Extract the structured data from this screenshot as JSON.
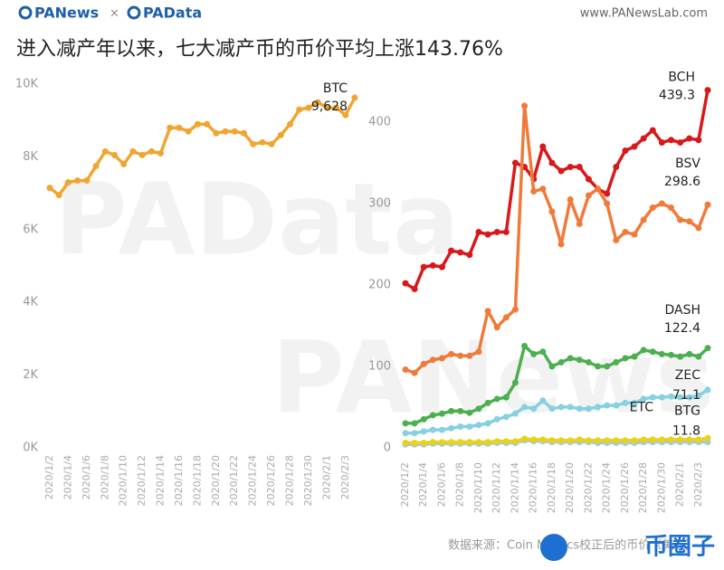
{
  "header": {
    "brand": "PANews",
    "separator": "×",
    "brand2": "PAData",
    "url": "www.PANewsLab.com"
  },
  "title": "进入减产年以来，七大减产币的币价平均上涨143.76%",
  "source": "数据来源：Coin Metrics校正后的币价（美元）",
  "watermarks": [
    "PAData",
    "PANews"
  ],
  "badge": "币圈子",
  "chart_data": [
    {
      "type": "line",
      "categories": [
        "2020/1/2",
        null,
        "2020/1/4",
        null,
        "2020/1/6",
        null,
        "2020/1/8",
        null,
        "2020/1/10",
        null,
        "2020/1/12",
        null,
        "2020/1/14",
        null,
        "2020/1/16",
        null,
        "2020/1/18",
        null,
        "2020/1/20",
        null,
        "2020/1/22",
        null,
        "2020/1/24",
        null,
        "2020/1/26",
        null,
        "2020/1/28",
        null,
        "2020/1/30",
        null,
        "2020/2/1",
        null,
        "2020/2/3",
        null
      ],
      "series": [
        {
          "name": "BTC",
          "color": "#f0a530",
          "values": [
            7150,
            6950,
            7300,
            7350,
            7350,
            7750,
            8150,
            8050,
            7800,
            8150,
            8050,
            8150,
            8100,
            8800,
            8800,
            8700,
            8900,
            8900,
            8650,
            8700,
            8700,
            8650,
            8350,
            8400,
            8350,
            8600,
            8900,
            9300,
            9350,
            9500,
            9350,
            9350,
            9150,
            9628
          ],
          "value_labels": [
            null,
            null,
            null,
            null,
            null,
            null,
            null,
            null,
            null,
            null,
            null,
            null,
            null,
            null,
            null,
            null,
            null,
            null,
            null,
            null,
            null,
            null,
            null,
            null,
            null,
            null,
            null,
            null,
            null,
            null,
            null,
            null,
            null,
            "9,628"
          ]
        }
      ],
      "ylim": [
        0,
        10000
      ],
      "yticks": [
        {
          "value": 0,
          "label": "0K"
        },
        {
          "value": 2000,
          "label": "2K"
        },
        {
          "value": 4000,
          "label": "4K"
        },
        {
          "value": 6000,
          "label": "6K"
        },
        {
          "value": 8000,
          "label": "8K"
        },
        {
          "value": 10000,
          "label": "10K"
        }
      ],
      "grid": false
    },
    {
      "type": "line",
      "categories": [
        "2020/1/2",
        null,
        "2020/1/4",
        null,
        "2020/1/6",
        null,
        "2020/1/8",
        null,
        "2020/1/10",
        null,
        "2020/1/12",
        null,
        "2020/1/14",
        null,
        "2020/1/16",
        null,
        "2020/1/18",
        null,
        "2020/1/20",
        null,
        "2020/1/22",
        null,
        "2020/1/24",
        null,
        "2020/1/26",
        null,
        "2020/1/28",
        null,
        "2020/1/30",
        null,
        "2020/2/1",
        null,
        "2020/2/3",
        null
      ],
      "series": [
        {
          "name": "BCH",
          "color": "#d7191c",
          "values": [
            202,
            195,
            222,
            224,
            222,
            242,
            240,
            237,
            265,
            262,
            265,
            265,
            350,
            345,
            330,
            370,
            350,
            340,
            345,
            345,
            330,
            318,
            312,
            345,
            365,
            370,
            380,
            390,
            375,
            378,
            375,
            380,
            378,
            439.3
          ],
          "value_labels": [
            null,
            null,
            null,
            null,
            null,
            null,
            null,
            null,
            null,
            null,
            null,
            null,
            null,
            null,
            null,
            null,
            null,
            null,
            null,
            null,
            null,
            null,
            null,
            null,
            null,
            null,
            null,
            null,
            null,
            null,
            null,
            null,
            null,
            "439.3"
          ]
        },
        {
          "name": "BSV",
          "color": "#f07a3a",
          "values": [
            96,
            92,
            103,
            108,
            110,
            115,
            113,
            113,
            118,
            168,
            148,
            160,
            170,
            420,
            315,
            318,
            290,
            250,
            305,
            275,
            310,
            318,
            300,
            255,
            265,
            262,
            280,
            295,
            300,
            295,
            280,
            278,
            270,
            298.6
          ],
          "value_labels": [
            null,
            null,
            null,
            null,
            null,
            null,
            null,
            null,
            null,
            null,
            null,
            null,
            null,
            null,
            null,
            null,
            null,
            null,
            null,
            null,
            null,
            null,
            null,
            null,
            null,
            null,
            null,
            null,
            null,
            null,
            null,
            null,
            null,
            "298.6"
          ]
        },
        {
          "name": "DASH",
          "color": "#4caf50",
          "values": [
            30,
            30,
            35,
            40,
            42,
            45,
            45,
            43,
            48,
            55,
            60,
            62,
            80,
            125,
            115,
            118,
            100,
            105,
            110,
            108,
            105,
            100,
            100,
            105,
            110,
            112,
            120,
            118,
            115,
            114,
            112,
            115,
            112,
            122.4
          ],
          "value_labels": [
            null,
            null,
            null,
            null,
            null,
            null,
            null,
            null,
            null,
            null,
            null,
            null,
            null,
            null,
            null,
            null,
            null,
            null,
            null,
            null,
            null,
            null,
            null,
            null,
            null,
            null,
            null,
            null,
            null,
            null,
            null,
            null,
            null,
            "122.4"
          ]
        },
        {
          "name": "ZEC",
          "color": "#86d0e2",
          "values": [
            18,
            18,
            20,
            22,
            22,
            24,
            26,
            26,
            28,
            30,
            35,
            38,
            42,
            50,
            48,
            58,
            48,
            50,
            50,
            48,
            48,
            50,
            52,
            52,
            55,
            55,
            60,
            62,
            62,
            63,
            62,
            62,
            64,
            71.1
          ],
          "value_labels": [
            null,
            null,
            null,
            null,
            null,
            null,
            null,
            null,
            null,
            null,
            null,
            null,
            null,
            null,
            null,
            null,
            null,
            null,
            null,
            null,
            null,
            null,
            null,
            null,
            null,
            null,
            null,
            null,
            null,
            null,
            null,
            null,
            null,
            "71.1"
          ]
        },
        {
          "name": "ETC",
          "color": "#a9c8da",
          "values": [
            4,
            4,
            4,
            5,
            5,
            5,
            5,
            5,
            5,
            5,
            6,
            6,
            6,
            9,
            8,
            8,
            7,
            7,
            7,
            7,
            7,
            6,
            6,
            6,
            6,
            6,
            7,
            7,
            7,
            7,
            7,
            7,
            7,
            7
          ]
        },
        {
          "name": "BTG",
          "color": "#e8d21a",
          "values": [
            6,
            6,
            6,
            7,
            7,
            7,
            7,
            7,
            7,
            7,
            8,
            8,
            8,
            11,
            10,
            10,
            9,
            9,
            9,
            10,
            9,
            9,
            9,
            9,
            9,
            9,
            10,
            10,
            10,
            10,
            10,
            10,
            10,
            11.8
          ],
          "value_labels": [
            null,
            null,
            null,
            null,
            null,
            null,
            null,
            null,
            null,
            null,
            null,
            null,
            null,
            null,
            null,
            null,
            null,
            null,
            null,
            null,
            null,
            null,
            null,
            null,
            null,
            null,
            null,
            null,
            null,
            null,
            null,
            null,
            null,
            "11.8"
          ]
        }
      ],
      "ylim": [
        -9,
        450
      ],
      "yticks": [
        0,
        100,
        200,
        300,
        400
      ],
      "grid": false
    }
  ]
}
